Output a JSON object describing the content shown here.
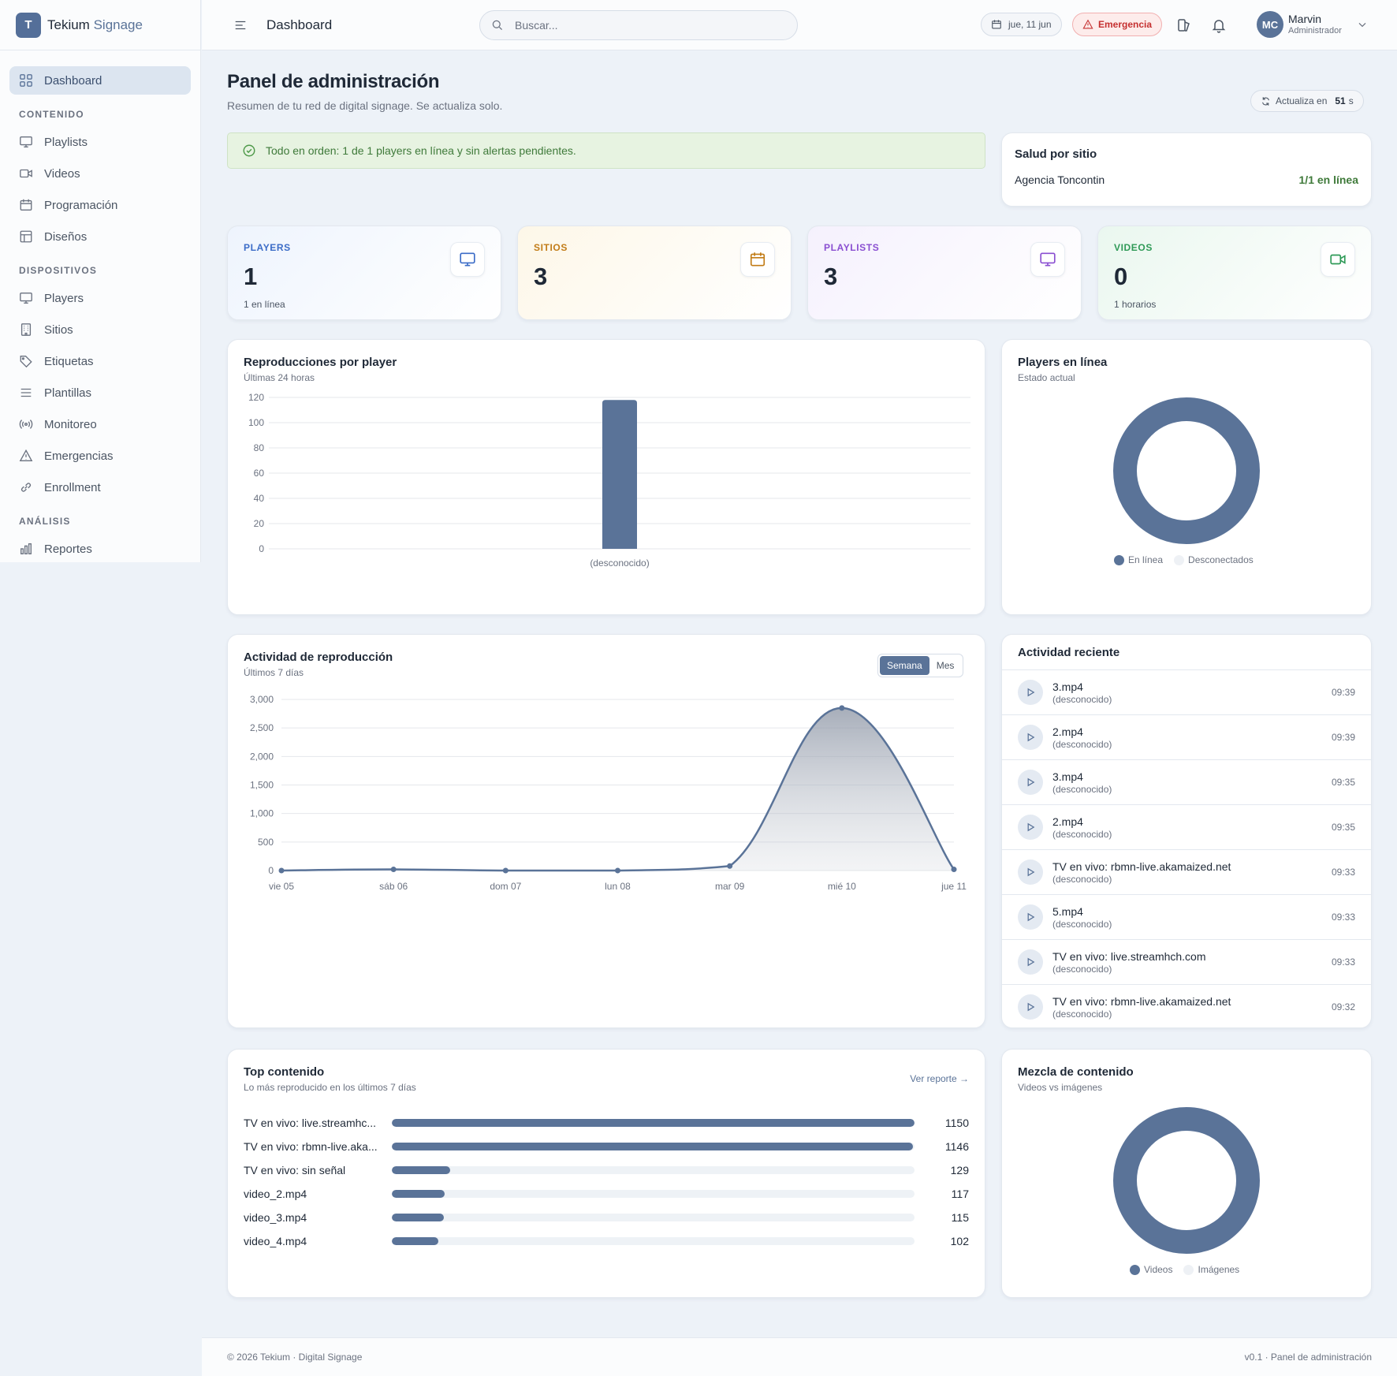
{
  "app": {
    "logo_letter": "T",
    "name_main": "Tekium ",
    "name_accent": "Signage"
  },
  "topbar": {
    "title": "Dashboard",
    "search_placeholder": "Buscar...",
    "date": "jue, 11 jun",
    "emergency": "Emergencia",
    "user_initials": "MC",
    "user_name": "Marvin",
    "user_role": "Administrador"
  },
  "sidebar": {
    "dashboard": "Dashboard",
    "sections": [
      "CONTENIDO",
      "DISPOSITIVOS",
      "ANÁLISIS"
    ],
    "contenido": [
      "Playlists",
      "Videos",
      "Programación",
      "Diseños"
    ],
    "dispositivos": [
      "Players",
      "Sitios",
      "Etiquetas",
      "Plantillas",
      "Monitoreo",
      "Emergencias",
      "Enrollment"
    ],
    "analisis": [
      "Reportes"
    ]
  },
  "header": {
    "title": "Panel de administración",
    "subtitle": "Resumen de tu red de digital signage. Se actualiza solo.",
    "refresh_label": "Actualiza en",
    "refresh_seconds": "51",
    "refresh_unit": "s"
  },
  "alert": {
    "text": "Todo en orden: 1 de 1 players en línea y sin alertas pendientes."
  },
  "site_health": {
    "title": "Salud por sitio",
    "site": "Agencia Toncontin",
    "status": "1/1 en línea"
  },
  "stats": [
    {
      "label": "PLAYERS",
      "value": "1",
      "foot": "1 en línea",
      "color": "#3b6cc7",
      "bg": "#eef4fd"
    },
    {
      "label": "SITIOS",
      "value": "3",
      "foot": "",
      "color": "#c27c17",
      "bg": "#fdf7e8"
    },
    {
      "label": "PLAYLISTS",
      "value": "3",
      "foot": "",
      "color": "#8a4fd1",
      "bg": "#f5f1fd"
    },
    {
      "label": "VIDEOS",
      "value": "0",
      "foot": "1 horarios",
      "color": "#2f9a57",
      "bg": "#eaf7ef"
    }
  ],
  "plays_by_player": {
    "title": "Reproducciones por player",
    "subtitle": "Últimas 24 horas"
  },
  "players_online": {
    "title": "Players en línea",
    "subtitle": "Estado actual",
    "legend": [
      "En línea",
      "Desconectados"
    ]
  },
  "activity": {
    "title": "Actividad de reproducción",
    "subtitle": "Últimos 7 días",
    "toggle": [
      "Semana",
      "Mes"
    ]
  },
  "recent": {
    "title": "Actividad reciente",
    "items": [
      {
        "title": "3.mp4",
        "sub": "(desconocido)",
        "time": "09:39"
      },
      {
        "title": "2.mp4",
        "sub": "(desconocido)",
        "time": "09:39"
      },
      {
        "title": "3.mp4",
        "sub": "(desconocido)",
        "time": "09:35"
      },
      {
        "title": "2.mp4",
        "sub": "(desconocido)",
        "time": "09:35"
      },
      {
        "title": "TV en vivo: rbmn-live.akamaized.net",
        "sub": "(desconocido)",
        "time": "09:33"
      },
      {
        "title": "5.mp4",
        "sub": "(desconocido)",
        "time": "09:33"
      },
      {
        "title": "TV en vivo: live.streamhch.com",
        "sub": "(desconocido)",
        "time": "09:33"
      },
      {
        "title": "TV en vivo: rbmn-live.akamaized.net",
        "sub": "(desconocido)",
        "time": "09:32"
      }
    ]
  },
  "top_content": {
    "title": "Top contenido",
    "subtitle": "Lo más reproducido en los últimos 7 días",
    "link": "Ver reporte →",
    "max": 1150,
    "items": [
      {
        "name": "TV en vivo: live.streamhc...",
        "count": 1150
      },
      {
        "name": "TV en vivo: rbmn-live.aka...",
        "count": 1146
      },
      {
        "name": "TV en vivo: sin señal",
        "count": 129
      },
      {
        "name": "video_2.mp4",
        "count": 117
      },
      {
        "name": "video_3.mp4",
        "count": 115
      },
      {
        "name": "video_4.mp4",
        "count": 102
      }
    ]
  },
  "content_mix": {
    "title": "Mezcla de contenido",
    "subtitle": "Videos vs imágenes",
    "legend": [
      "Videos",
      "Imágenes"
    ]
  },
  "footer": {
    "left": "© 2026 Tekium · Digital Signage",
    "right": "v0.1 · Panel de administración"
  },
  "colors": {
    "accent": "#5a7398",
    "light": "#eef1f5"
  },
  "chart_data": [
    {
      "type": "bar",
      "categories": [
        "(desconocido)"
      ],
      "values": [
        118
      ],
      "ylim": [
        0,
        120
      ],
      "yticks": [
        0,
        20,
        40,
        60,
        80,
        100,
        120
      ]
    },
    {
      "type": "pie",
      "labels": [
        "En línea",
        "Desconectados"
      ],
      "values": [
        1,
        0
      ]
    },
    {
      "type": "area",
      "categories": [
        "vie 05",
        "sáb 06",
        "dom 07",
        "lun 08",
        "mar 09",
        "mié 10",
        "jue 11"
      ],
      "values": [
        0,
        20,
        0,
        0,
        80,
        2850,
        20
      ],
      "ylim": [
        0,
        3000
      ],
      "yticks": [
        0,
        500,
        1000,
        1500,
        2000,
        2500,
        3000
      ],
      "ytick_labels": [
        "0",
        "500",
        "1,000",
        "1,500",
        "2,000",
        "2,500",
        "3,000"
      ]
    },
    {
      "type": "pie",
      "labels": [
        "Videos",
        "Imágenes"
      ],
      "values": [
        1,
        0
      ]
    }
  ]
}
